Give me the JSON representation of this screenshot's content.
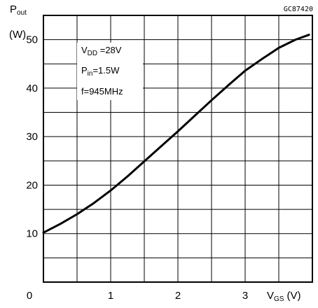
{
  "chart_data": {
    "type": "line",
    "code": "GC87420",
    "ylabel": {
      "main": "P",
      "sub": "out",
      "unit": "(W)"
    },
    "xlabel": {
      "main": "V",
      "sub": "GS",
      "unit": "(V)"
    },
    "xlim": [
      0,
      4
    ],
    "ylim": [
      0,
      55
    ],
    "x_ticks": [
      0,
      1,
      2,
      3
    ],
    "x_tick_labels": [
      "0",
      "1",
      "2",
      "3"
    ],
    "y_ticks": [
      10,
      20,
      30,
      40,
      50
    ],
    "y_tick_labels": [
      "10",
      "20",
      "30",
      "40",
      "50"
    ],
    "x_grid_step": 0.5,
    "y_grid_step": 5,
    "grid": true,
    "annotations": [
      {
        "main": "V",
        "sub": "DD",
        "rest": " =28V"
      },
      {
        "main": "P",
        "sub": "in",
        "rest": "=1.5W"
      },
      {
        "main": "f=945MHz",
        "sub": "",
        "rest": ""
      }
    ],
    "series": [
      {
        "x": [
          0,
          0.25,
          0.5,
          0.75,
          1.0,
          1.25,
          1.5,
          1.75,
          2.0,
          2.25,
          2.5,
          2.75,
          3.0,
          3.25,
          3.5,
          3.75,
          3.95
        ],
        "y": [
          10.2,
          12.0,
          14.0,
          16.3,
          18.9,
          21.8,
          24.9,
          28.0,
          31.1,
          34.3,
          37.5,
          40.6,
          43.6,
          46.0,
          48.3,
          50.0,
          51.0
        ]
      }
    ]
  }
}
